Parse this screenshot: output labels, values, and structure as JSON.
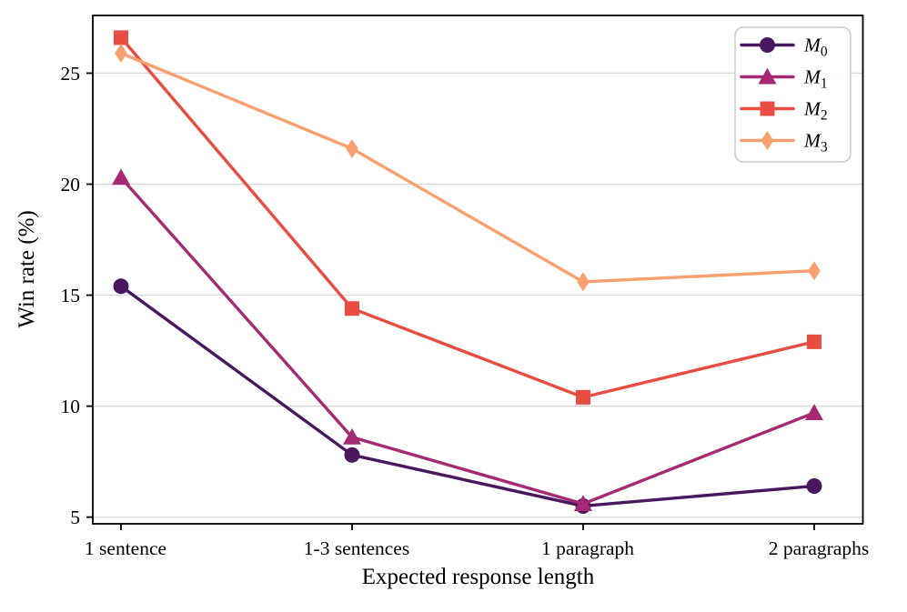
{
  "figure": {
    "background": "#ffffff"
  },
  "chart_data": {
    "type": "line",
    "title": "",
    "xlabel": "Expected response length",
    "ylabel": "Win rate (%)",
    "categories": [
      "1 sentence",
      "1-3 sentences",
      "1 paragraph",
      "2 paragraphs"
    ],
    "series": [
      {
        "name": "M_0",
        "marker": "circle-marker",
        "color": "#48175f",
        "values": [
          15.4,
          7.8,
          5.5,
          6.4
        ]
      },
      {
        "name": "M_1",
        "marker": "triangle-marker",
        "color": "#a62973",
        "values": [
          20.3,
          8.6,
          5.6,
          9.7
        ]
      },
      {
        "name": "M_2",
        "marker": "square-marker",
        "color": "#e94c41",
        "values": [
          26.6,
          14.4,
          10.4,
          12.9
        ]
      },
      {
        "name": "M_3",
        "marker": "diamond-marker",
        "color": "#f9a06e",
        "values": [
          25.9,
          21.6,
          15.6,
          16.1
        ]
      }
    ],
    "yticks": [
      "5",
      "10",
      "15",
      "20",
      "25"
    ],
    "ylim": [
      4.7,
      27.6
    ],
    "grid": "horizontal",
    "grid_color": "#d8d8d8",
    "axis_color": "#000000",
    "tick_label_color": "#000000",
    "legend": {
      "position": "upper right",
      "entries": [
        "M_0",
        "M_1",
        "M_2",
        "M_3"
      ],
      "border_color": "#cccccc",
      "background": "#ffffff"
    }
  }
}
